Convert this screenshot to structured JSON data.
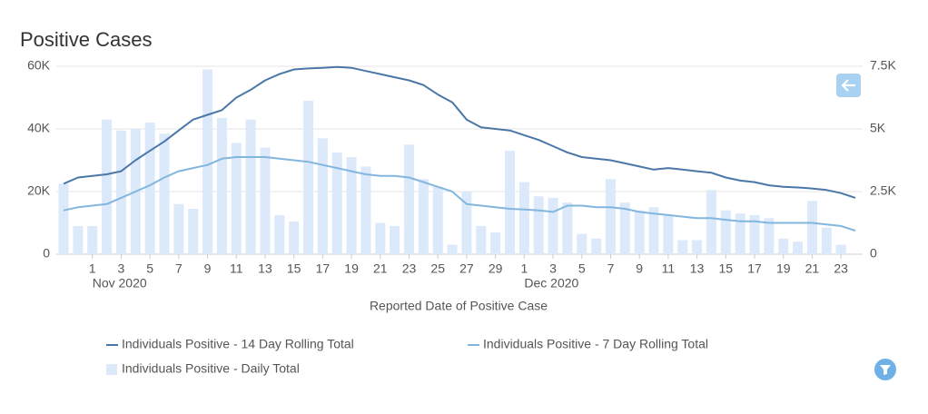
{
  "chart_data": {
    "type": "bar",
    "title": "Positive Cases",
    "x_label": "Reported Date of Positive Case",
    "x": [
      "2020-10-30",
      "2020-10-31",
      "2020-11-01",
      "2020-11-02",
      "2020-11-03",
      "2020-11-04",
      "2020-11-05",
      "2020-11-06",
      "2020-11-07",
      "2020-11-08",
      "2020-11-09",
      "2020-11-10",
      "2020-11-11",
      "2020-11-12",
      "2020-11-13",
      "2020-11-14",
      "2020-11-15",
      "2020-11-16",
      "2020-11-17",
      "2020-11-18",
      "2020-11-19",
      "2020-11-20",
      "2020-11-21",
      "2020-11-22",
      "2020-11-23",
      "2020-11-24",
      "2020-11-25",
      "2020-11-26",
      "2020-11-27",
      "2020-11-28",
      "2020-11-29",
      "2020-11-30",
      "2020-12-01",
      "2020-12-02",
      "2020-12-03",
      "2020-12-04",
      "2020-12-05",
      "2020-12-06",
      "2020-12-07",
      "2020-12-08",
      "2020-12-09",
      "2020-12-10",
      "2020-12-11",
      "2020-12-12",
      "2020-12-13",
      "2020-12-14",
      "2020-12-15",
      "2020-12-16",
      "2020-12-17",
      "2020-12-18",
      "2020-12-19",
      "2020-12-20",
      "2020-12-21",
      "2020-12-22",
      "2020-12-23",
      "2020-12-24"
    ],
    "xticks": [
      {
        "value": "2020-11-01",
        "label": "1"
      },
      {
        "value": "2020-11-03",
        "label": "3"
      },
      {
        "value": "2020-11-05",
        "label": "5"
      },
      {
        "value": "2020-11-07",
        "label": "7"
      },
      {
        "value": "2020-11-09",
        "label": "9"
      },
      {
        "value": "2020-11-11",
        "label": "11"
      },
      {
        "value": "2020-11-13",
        "label": "13"
      },
      {
        "value": "2020-11-15",
        "label": "15"
      },
      {
        "value": "2020-11-17",
        "label": "17"
      },
      {
        "value": "2020-11-19",
        "label": "19"
      },
      {
        "value": "2020-11-21",
        "label": "21"
      },
      {
        "value": "2020-11-23",
        "label": "23"
      },
      {
        "value": "2020-11-25",
        "label": "25"
      },
      {
        "value": "2020-11-27",
        "label": "27"
      },
      {
        "value": "2020-11-29",
        "label": "29"
      },
      {
        "value": "2020-12-01",
        "label": "1"
      },
      {
        "value": "2020-12-03",
        "label": "3"
      },
      {
        "value": "2020-12-05",
        "label": "5"
      },
      {
        "value": "2020-12-07",
        "label": "7"
      },
      {
        "value": "2020-12-09",
        "label": "9"
      },
      {
        "value": "2020-12-11",
        "label": "11"
      },
      {
        "value": "2020-12-13",
        "label": "13"
      },
      {
        "value": "2020-12-15",
        "label": "15"
      },
      {
        "value": "2020-12-17",
        "label": "17"
      },
      {
        "value": "2020-12-19",
        "label": "19"
      },
      {
        "value": "2020-12-21",
        "label": "21"
      },
      {
        "value": "2020-12-23",
        "label": "23"
      }
    ],
    "x_month_labels": [
      {
        "value": "2020-11-01",
        "label": "Nov 2020"
      },
      {
        "value": "2020-12-01",
        "label": "Dec 2020"
      }
    ],
    "ylim": [
      0,
      60000
    ],
    "yticks": [
      0,
      {
        "value": 20000,
        "label": "20K"
      },
      {
        "value": 40000,
        "label": "40K"
      },
      {
        "value": 60000,
        "label": "60K"
      }
    ],
    "y2lim": [
      0,
      7500
    ],
    "y2ticks": [
      0,
      {
        "value": 2500,
        "label": "2.5K"
      },
      {
        "value": 5000,
        "label": "5K"
      },
      {
        "value": 7500,
        "label": "7.5K"
      }
    ],
    "grid": true,
    "series": [
      {
        "name": "Individuals Positive - 14 Day Rolling Total",
        "type": "line",
        "color": "#4a77a8",
        "values": [
          22500,
          24500,
          25000,
          25500,
          26500,
          30000,
          33000,
          36000,
          39500,
          43000,
          44500,
          46000,
          50000,
          52500,
          55500,
          57500,
          59000,
          59300,
          59500,
          59800,
          59500,
          58500,
          57500,
          56500,
          55500,
          54000,
          51000,
          48500,
          43000,
          40500,
          40000,
          39500,
          38000,
          36500,
          34500,
          32500,
          31000,
          30500,
          30000,
          29000,
          28000,
          27000,
          27500,
          27000,
          26500,
          26000,
          24500,
          23500,
          23000,
          22000,
          21500,
          21300,
          21000,
          20500,
          19500,
          18000
        ]
      },
      {
        "name": "Individuals Positive - 7 Day Rolling Total",
        "type": "line",
        "color": "#82b6de",
        "values": [
          14000,
          15000,
          15500,
          16000,
          18000,
          20000,
          22000,
          24500,
          26500,
          27500,
          28500,
          30500,
          31000,
          31000,
          31000,
          30500,
          30000,
          29500,
          28500,
          27500,
          26500,
          25500,
          25000,
          25000,
          24500,
          23000,
          21500,
          20000,
          16000,
          15500,
          15000,
          14500,
          14300,
          14000,
          13500,
          15500,
          15500,
          15000,
          15000,
          14500,
          13500,
          13000,
          12500,
          12000,
          11500,
          11500,
          11000,
          10500,
          10500,
          10000,
          10000,
          10000,
          10000,
          9500,
          9000,
          7500
        ]
      },
      {
        "name": "Individuals Positive - Daily Total",
        "type": "bar",
        "axis": "y2",
        "color": "#dbe9fb",
        "values": [
          2812,
          1125,
          1125,
          5375,
          4940,
          5000,
          5250,
          4810,
          2000,
          1810,
          7375,
          5440,
          4440,
          5375,
          4250,
          1560,
          1310,
          6125,
          4625,
          4060,
          3875,
          3500,
          1250,
          1125,
          4375,
          3000,
          2690,
          375,
          2500,
          1125,
          875,
          4125,
          2875,
          2310,
          2250,
          2060,
          810,
          625,
          3000,
          2060,
          1750,
          1875,
          1560,
          560,
          560,
          2560,
          1750,
          1625,
          1560,
          1440,
          625,
          500,
          2125,
          1060,
          375,
          null
        ]
      }
    ]
  }
}
